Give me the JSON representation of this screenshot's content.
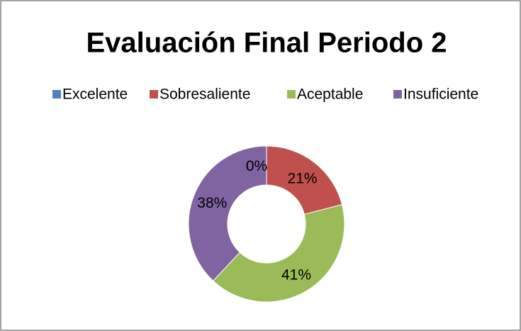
{
  "chart_data": {
    "type": "donut",
    "title": "Evaluación Final Periodo 2",
    "categories": [
      "Excelente",
      "Sobresaliente",
      "Aceptable",
      "Insuficiente"
    ],
    "values": [
      0,
      21,
      41,
      38
    ],
    "value_labels": [
      "0%",
      "21%",
      "41%",
      "38%"
    ],
    "colors": [
      "#4f81bd",
      "#c0504d",
      "#9bbb59",
      "#8064a2"
    ],
    "legend": "top"
  }
}
